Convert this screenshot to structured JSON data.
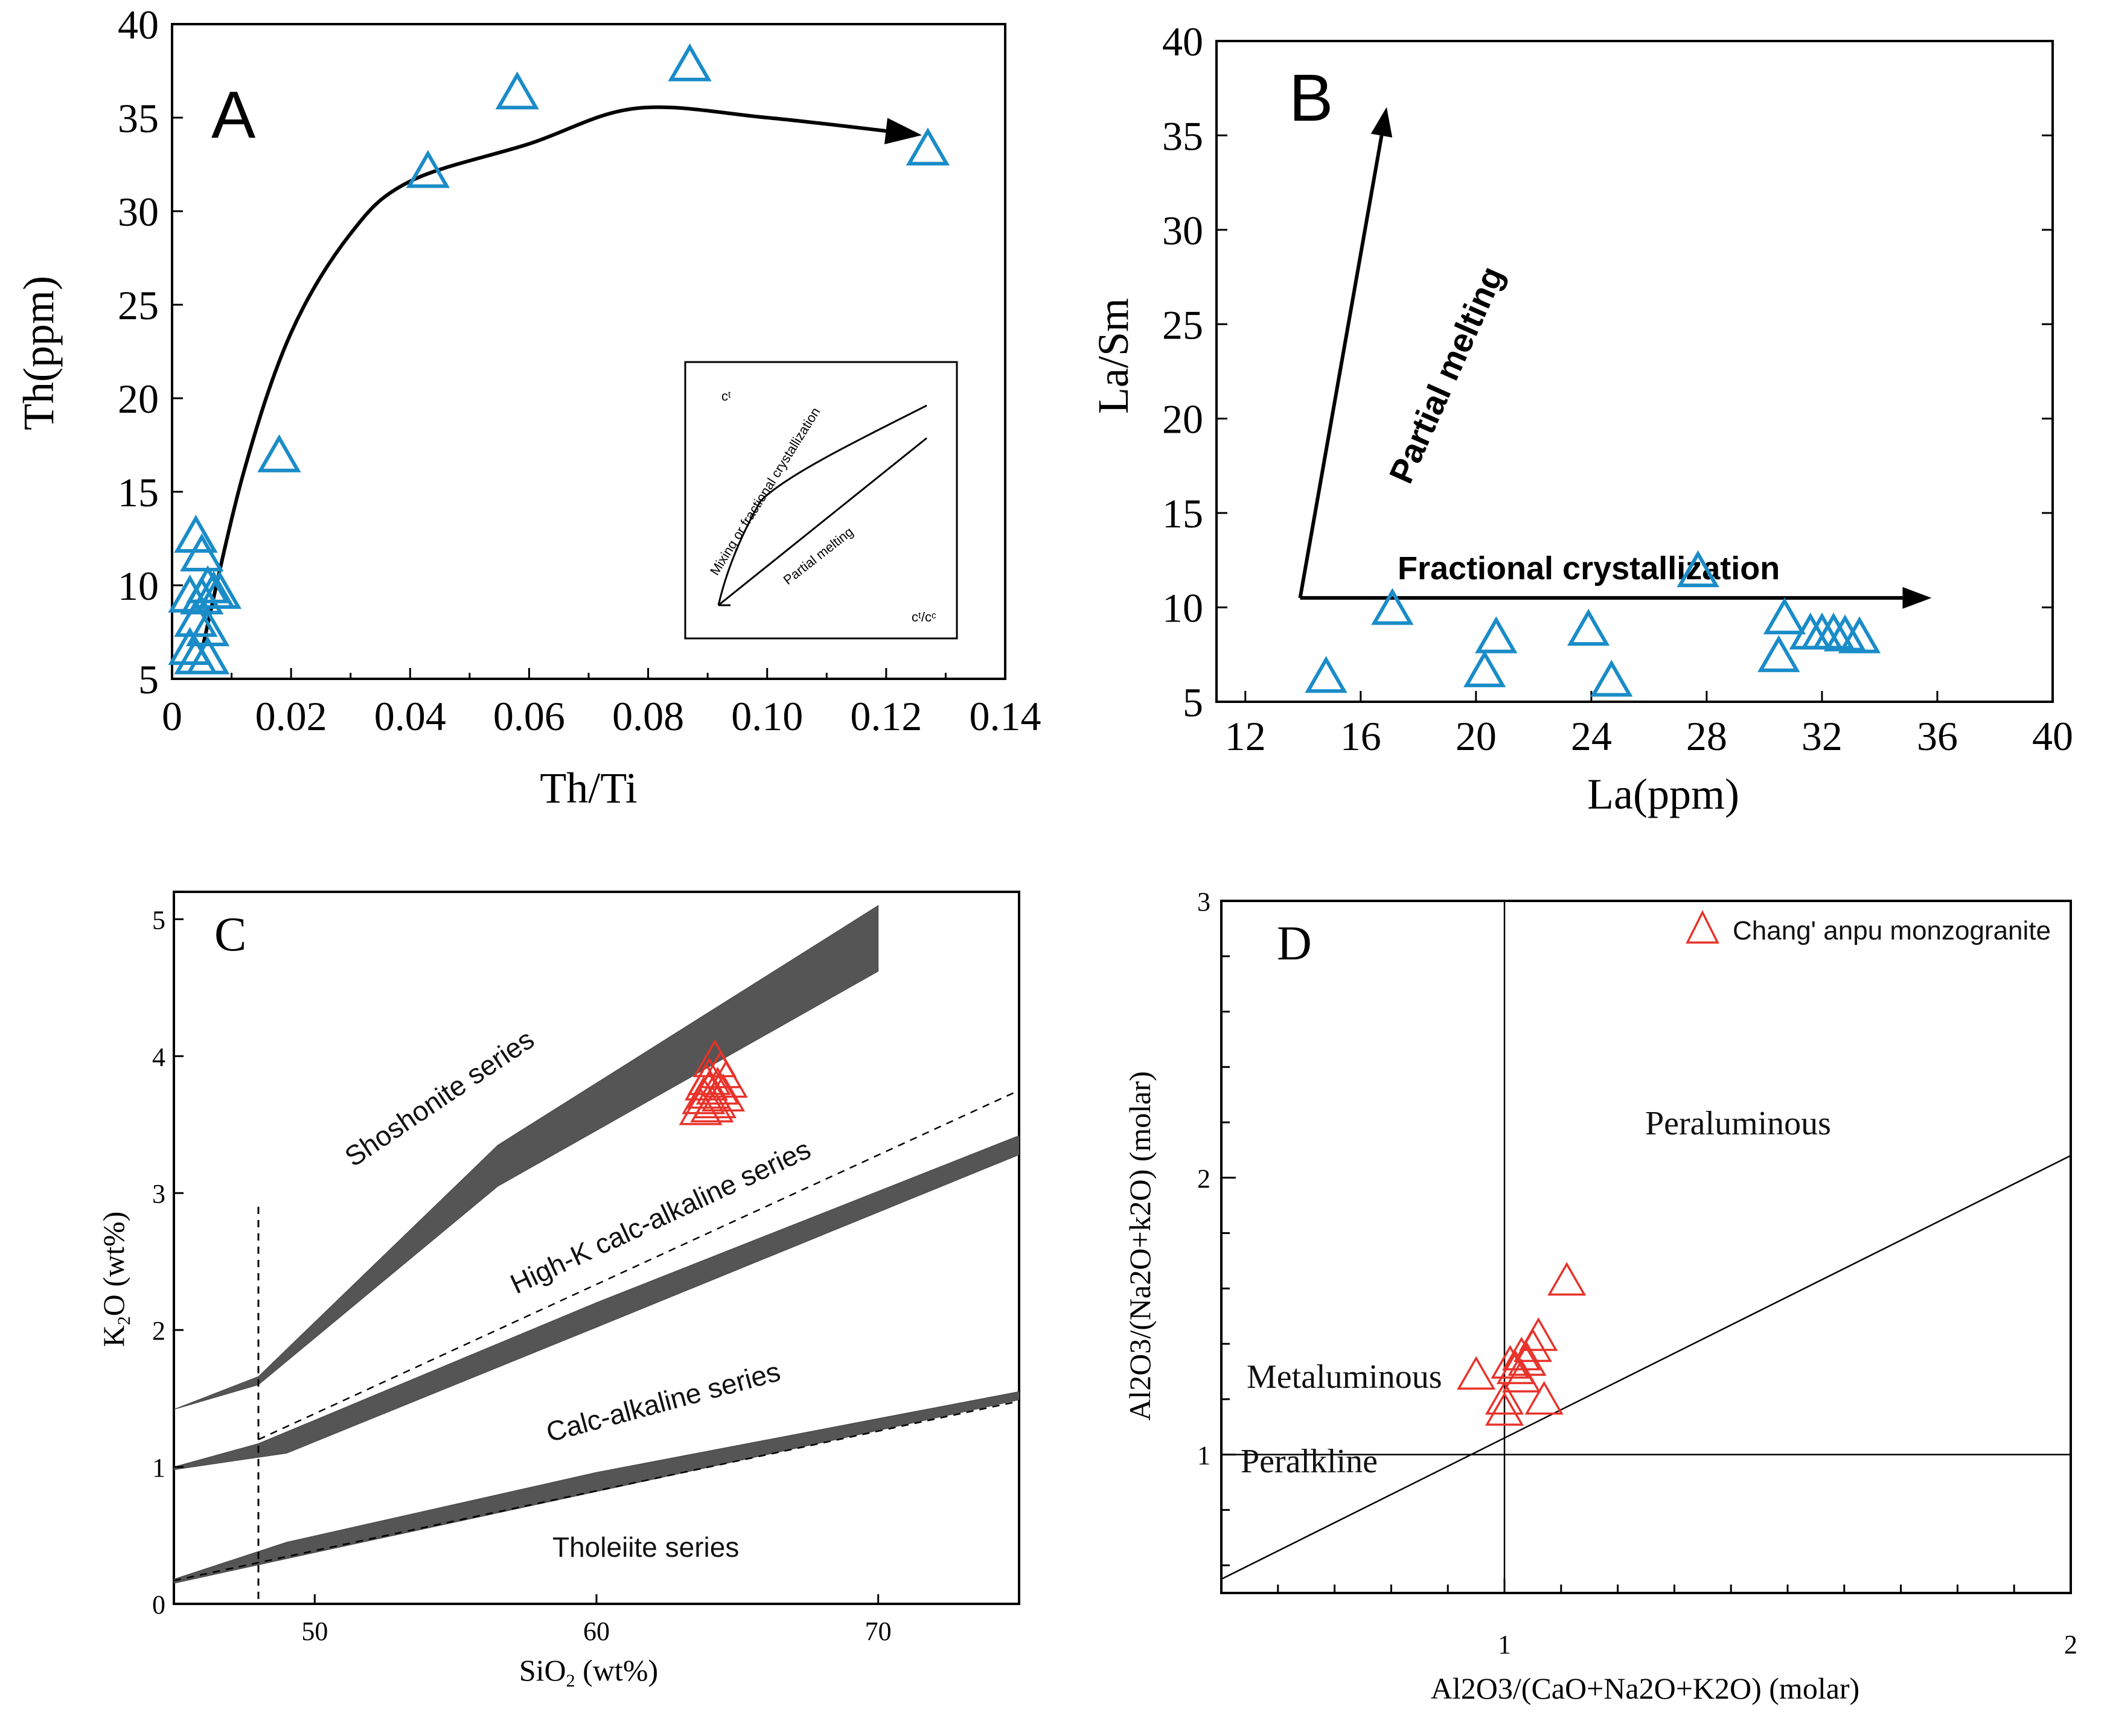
{
  "colors": {
    "blue_marker": "#1a8cc8",
    "red_marker": "#e8322a",
    "band": "#555555"
  },
  "chart_data": [
    {
      "panel": "A",
      "type": "scatter",
      "xlabel": "Th/Ti",
      "ylabel": "Th(ppm)",
      "xlim": [
        0,
        0.14
      ],
      "ylim": [
        5,
        40
      ],
      "xticks": [
        "0",
        "0.02",
        "0.04",
        "0.06",
        "0.08",
        "0.10",
        "0.12",
        "0.14"
      ],
      "yticks": [
        "5",
        "10",
        "15",
        "20",
        "25",
        "30",
        "35",
        "40"
      ],
      "x": [
        0.004,
        0.005,
        0.006,
        0.007,
        0.005,
        0.003,
        0.004,
        0.006,
        0.008,
        0.003,
        0.004,
        0.006,
        0.018,
        0.043,
        0.058,
        0.087,
        0.127
      ],
      "y": [
        12.5,
        11.5,
        9.8,
        9.5,
        9.2,
        9.3,
        8.0,
        7.5,
        9.5,
        6.5,
        6.0,
        6.0,
        16.8,
        32.0,
        36.2,
        37.7,
        33.2
      ],
      "trend_curve": {
        "x": [
          0.005,
          0.012,
          0.02,
          0.03,
          0.04,
          0.06,
          0.078,
          0.1,
          0.125
        ],
        "y": [
          6.5,
          16.0,
          23.5,
          28.8,
          31.6,
          33.6,
          35.5,
          35.0,
          34.1
        ]
      },
      "inset": {
        "c_label": "cᵗ",
        "ratio_label": "cᵗ/cᶜ",
        "curve1_label": "Mixing or fractional crystallization",
        "curve2_label": "Partial melting"
      }
    },
    {
      "panel": "B",
      "type": "scatter",
      "xlabel": "La(ppm)",
      "ylabel": "La/Sm",
      "xlim": [
        11,
        40
      ],
      "ylim": [
        5,
        40
      ],
      "xticks": [
        "12",
        "16",
        "20",
        "24",
        "28",
        "32",
        "36",
        "40"
      ],
      "yticks": [
        "5",
        "10",
        "15",
        "20",
        "25",
        "30",
        "35",
        "40"
      ],
      "x": [
        14.8,
        17.1,
        20.3,
        20.7,
        23.9,
        24.7,
        27.7,
        30.5,
        30.7,
        31.6,
        32.0,
        32.4,
        32.8,
        33.3
      ],
      "y": [
        6.2,
        9.8,
        6.5,
        8.3,
        8.7,
        6.0,
        11.8,
        7.3,
        9.3,
        8.5,
        8.5,
        8.5,
        8.4,
        8.3
      ],
      "arrows": [
        {
          "label": "Partial melting",
          "from": [
            13.9,
            10.5
          ],
          "to": [
            16.9,
            36.5
          ]
        },
        {
          "label": "Fractional crystallization",
          "from": [
            13.9,
            10.5
          ],
          "to": [
            35.8,
            10.5
          ]
        }
      ]
    },
    {
      "panel": "C",
      "type": "scatter",
      "xlabel_main": "SiO",
      "xlabel_sub": "2",
      "xlabel_tail": " (wt%)",
      "ylabel_main": "K",
      "ylabel_sub": "2",
      "ylabel_tail": "O (wt%)",
      "xlim": [
        45,
        75
      ],
      "ylim": [
        0,
        5.2
      ],
      "xticks": [
        "50",
        "60",
        "70"
      ],
      "yticks": [
        "0",
        "1",
        "2",
        "3",
        "4",
        "5"
      ],
      "regions": [
        "Shoshonite series",
        "High-K calc-alkaline series",
        "Calc-alkaline series",
        "Tholeiite series"
      ],
      "x": [
        64.2,
        64.4,
        64.0,
        63.9,
        64.3,
        64.0,
        63.8,
        64.6,
        64.5,
        64.2,
        63.7,
        64.1
      ],
      "y": [
        3.95,
        3.87,
        3.82,
        3.78,
        3.75,
        3.72,
        3.68,
        3.8,
        3.7,
        3.65,
        3.6,
        3.62
      ]
    },
    {
      "panel": "D",
      "type": "scatter",
      "xlabel": "Al2O3/(CaO+Na2O+K2O) (molar)",
      "ylabel": "Al2O3/(Na2O+k2O) (molar)",
      "xlim": [
        0.5,
        2.0
      ],
      "ylim": [
        0.5,
        3.0
      ],
      "xticks": [
        "1",
        "2"
      ],
      "yticks": [
        "1",
        "2",
        "3"
      ],
      "regions": [
        "Peraluminous",
        "Metaluminous",
        "Peralkline"
      ],
      "legend": "Chang' anpu monzogranite",
      "x": [
        0.95,
        1.0,
        1.01,
        1.02,
        1.03,
        1.04,
        1.05,
        1.06,
        1.07,
        1.11,
        1.0,
        1.03
      ],
      "y": [
        1.28,
        1.15,
        1.32,
        1.3,
        1.35,
        1.33,
        1.38,
        1.42,
        1.19,
        1.62,
        1.19,
        1.27
      ]
    }
  ]
}
